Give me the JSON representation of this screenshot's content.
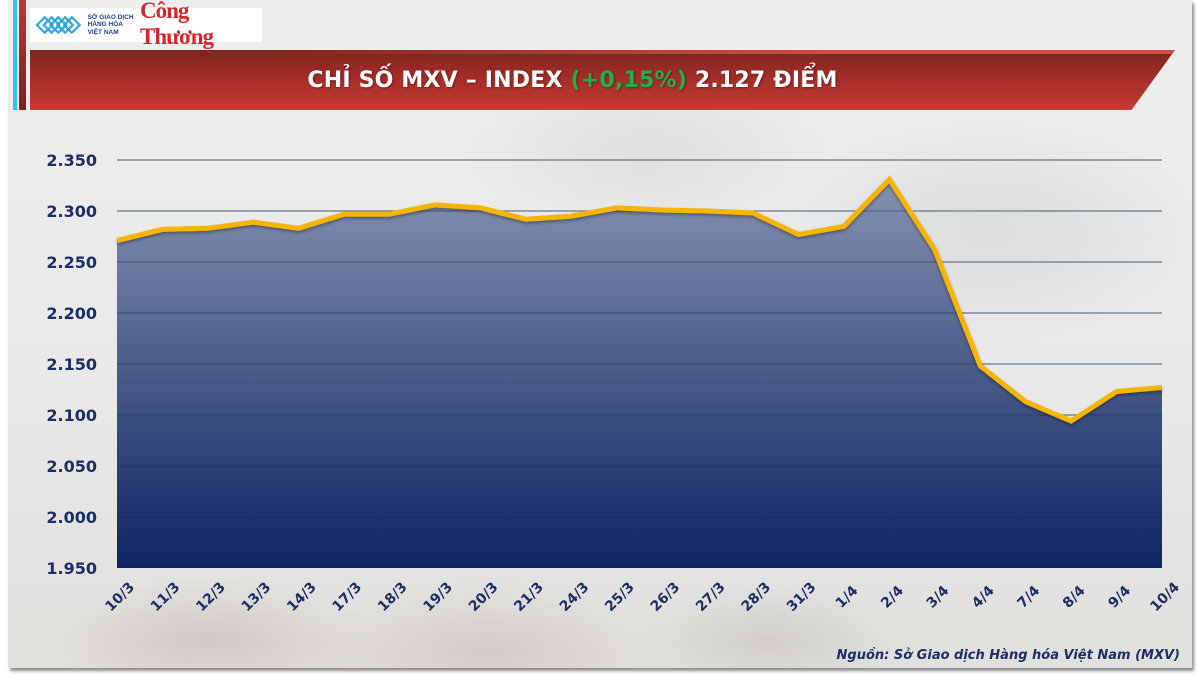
{
  "header": {
    "logo_mxv_lines": [
      "SỞ GIAO DỊCH",
      "HÀNG HÓA",
      "VIỆT NAM"
    ],
    "logo_brand": "Công Thương",
    "title_prefix": "CHỈ SỐ MXV – INDEX ",
    "title_change": "(+0,15%)",
    "title_suffix": " 2.127 ĐIỂM"
  },
  "colors": {
    "banner_red": "#a32d28",
    "change_green": "#1fb04a",
    "line": "#f7b500",
    "fill_top": "#8b97b3",
    "fill_bottom": "#0c2462",
    "axis_text": "#1b2f66"
  },
  "source": "Nguồn: Sở Giao dịch Hàng hóa Việt Nam (MXV)",
  "chart_data": {
    "type": "area",
    "title": "CHỈ SỐ MXV – INDEX (+0,15%) 2.127 ĐIỂM",
    "xlabel": "",
    "ylabel": "",
    "categories": [
      "10/3",
      "11/3",
      "12/3",
      "13/3",
      "14/3",
      "17/3",
      "18/3",
      "19/3",
      "20/3",
      "21/3",
      "24/3",
      "25/3",
      "26/3",
      "27/3",
      "28/3",
      "31/3",
      "1/4",
      "2/4",
      "3/4",
      "4/4",
      "7/4",
      "8/4",
      "9/4",
      "10/4"
    ],
    "series": [
      {
        "name": "MXV-Index",
        "values": [
          2271,
          2282,
          2283,
          2289,
          2283,
          2297,
          2297,
          2306,
          2303,
          2292,
          2295,
          2303,
          2301,
          2300,
          2298,
          2277,
          2285,
          2331,
          2262,
          2148,
          2113,
          2094,
          2123,
          2127
        ]
      }
    ],
    "ylim": [
      1950,
      2350
    ],
    "yticks": [
      1950,
      2000,
      2050,
      2100,
      2150,
      2200,
      2250,
      2300,
      2350
    ],
    "ytick_labels": [
      "1.950",
      "2.000",
      "2.050",
      "2.100",
      "2.150",
      "2.200",
      "2.250",
      "2.300",
      "2.350"
    ],
    "grid": true,
    "legend": "none"
  }
}
